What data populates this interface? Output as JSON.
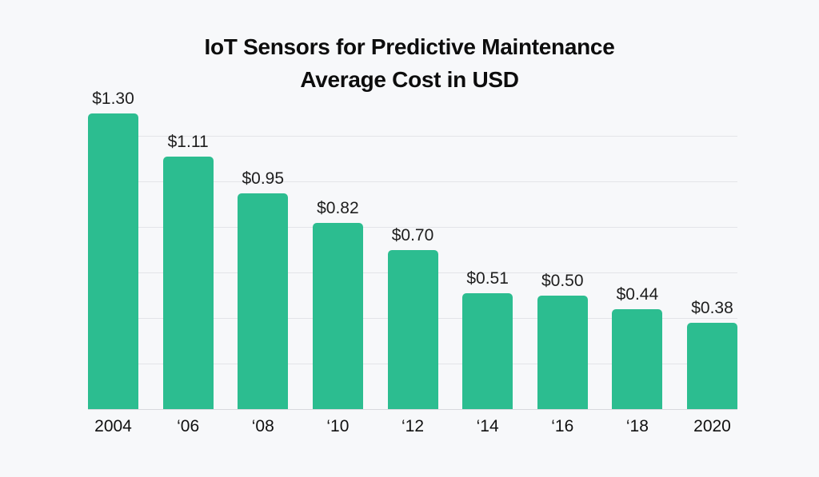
{
  "chart": {
    "title_line1": "IoT Sensors for Predictive Maintenance",
    "title_line2": "Average Cost in USD"
  },
  "chart_data": {
    "type": "bar",
    "title": "IoT Sensors for Predictive Maintenance",
    "subtitle": "Average Cost in USD",
    "categories": [
      "2004",
      "‘06",
      "‘08",
      "‘10",
      "‘12",
      "‘14",
      "‘16",
      "‘18",
      "2020"
    ],
    "values": [
      1.3,
      1.11,
      0.95,
      0.82,
      0.7,
      0.51,
      0.5,
      0.44,
      0.38
    ],
    "value_labels": [
      "$1.30",
      "$1.11",
      "$0.95",
      "$0.82",
      "$0.70",
      "$0.51",
      "$0.50",
      "$0.44",
      "$0.38"
    ],
    "xlabel": "",
    "ylabel": "",
    "ylim": [
      0,
      1.3
    ],
    "gridline_values": [
      0.2,
      0.4,
      0.6,
      0.8,
      1.0,
      1.2
    ],
    "grid": true,
    "legend": false,
    "bar_color": "#2cbd90",
    "background_color": "#f7f8fa",
    "grid_color": "#e3e4e8",
    "text_color": "#1e1e1e"
  }
}
